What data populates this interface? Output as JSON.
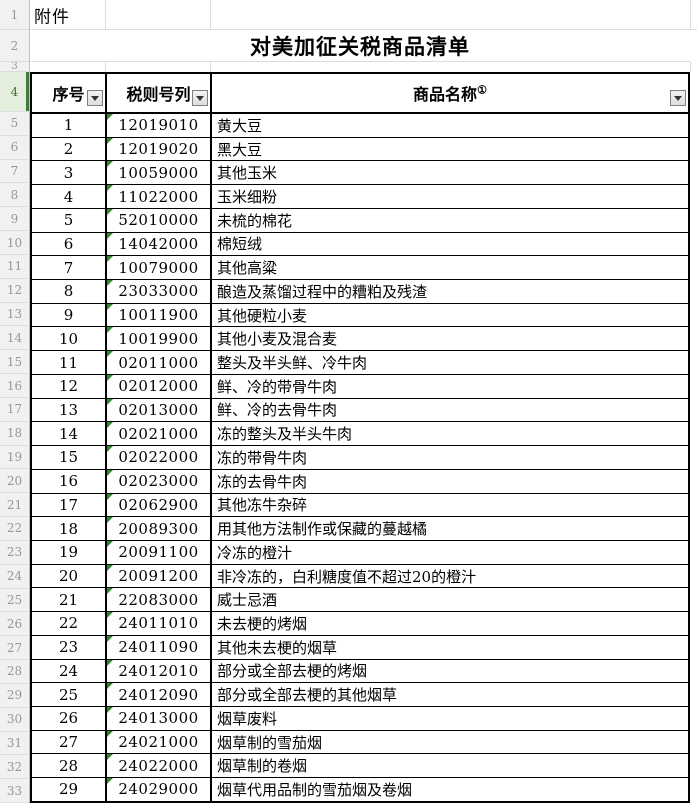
{
  "sheet": {
    "attachment_label": "附件",
    "title": "对美加征关税商品清单",
    "columns": {
      "seq": "序号",
      "code": "税则号列",
      "name": "商品名称",
      "name_sup": "①"
    },
    "gutter_rows": [
      1,
      2,
      3,
      4,
      5,
      6,
      7,
      8,
      9,
      10,
      11,
      12,
      13,
      14,
      15,
      16,
      17,
      18,
      19,
      20,
      21,
      22,
      23,
      24,
      25,
      26,
      27,
      28,
      29,
      30,
      31,
      32,
      33
    ],
    "rows": [
      {
        "seq": 1,
        "code": "12019010",
        "name": "黄大豆"
      },
      {
        "seq": 2,
        "code": "12019020",
        "name": "黑大豆"
      },
      {
        "seq": 3,
        "code": "10059000",
        "name": "其他玉米"
      },
      {
        "seq": 4,
        "code": "11022000",
        "name": "玉米细粉"
      },
      {
        "seq": 5,
        "code": "52010000",
        "name": "未梳的棉花"
      },
      {
        "seq": 6,
        "code": "14042000",
        "name": "棉短绒"
      },
      {
        "seq": 7,
        "code": "10079000",
        "name": "其他高粱"
      },
      {
        "seq": 8,
        "code": "23033000",
        "name": "酿造及蒸馏过程中的糟粕及残渣"
      },
      {
        "seq": 9,
        "code": "10011900",
        "name": "其他硬粒小麦"
      },
      {
        "seq": 10,
        "code": "10019900",
        "name": "其他小麦及混合麦"
      },
      {
        "seq": 11,
        "code": "02011000",
        "name": "整头及半头鲜、冷牛肉"
      },
      {
        "seq": 12,
        "code": "02012000",
        "name": "鲜、冷的带骨牛肉"
      },
      {
        "seq": 13,
        "code": "02013000",
        "name": "鲜、冷的去骨牛肉"
      },
      {
        "seq": 14,
        "code": "02021000",
        "name": "冻的整头及半头牛肉"
      },
      {
        "seq": 15,
        "code": "02022000",
        "name": "冻的带骨牛肉"
      },
      {
        "seq": 16,
        "code": "02023000",
        "name": "冻的去骨牛肉"
      },
      {
        "seq": 17,
        "code": "02062900",
        "name": "其他冻牛杂碎"
      },
      {
        "seq": 18,
        "code": "20089300",
        "name": "用其他方法制作或保藏的蔓越橘"
      },
      {
        "seq": 19,
        "code": "20091100",
        "name": "冷冻的橙汁"
      },
      {
        "seq": 20,
        "code": "20091200",
        "name": "非冷冻的，白利糖度值不超过20的橙汁"
      },
      {
        "seq": 21,
        "code": "22083000",
        "name": "威士忌酒"
      },
      {
        "seq": 22,
        "code": "24011010",
        "name": "未去梗的烤烟"
      },
      {
        "seq": 23,
        "code": "24011090",
        "name": "其他未去梗的烟草"
      },
      {
        "seq": 24,
        "code": "24012010",
        "name": "部分或全部去梗的烤烟"
      },
      {
        "seq": 25,
        "code": "24012090",
        "name": "部分或全部去梗的其他烟草"
      },
      {
        "seq": 26,
        "code": "24013000",
        "name": "烟草废料"
      },
      {
        "seq": 27,
        "code": "24021000",
        "name": "烟草制的雪茄烟"
      },
      {
        "seq": 28,
        "code": "24022000",
        "name": "烟草制的卷烟"
      },
      {
        "seq": 29,
        "code": "24029000",
        "name": "烟草代用品制的雪茄烟及卷烟"
      }
    ]
  },
  "colors": {
    "table_border": "#000000",
    "gridline_light": "#dcdcdc",
    "gutter_bg": "#f1f1f1",
    "gutter_text": "#979797",
    "active_gutter_bg": "#e3eedd",
    "active_gutter_bar": "#3e7b3e",
    "indicator_triangle": "#2e8b2e",
    "filter_button_bg": "#e9e9e9",
    "filter_button_border": "#808080"
  }
}
